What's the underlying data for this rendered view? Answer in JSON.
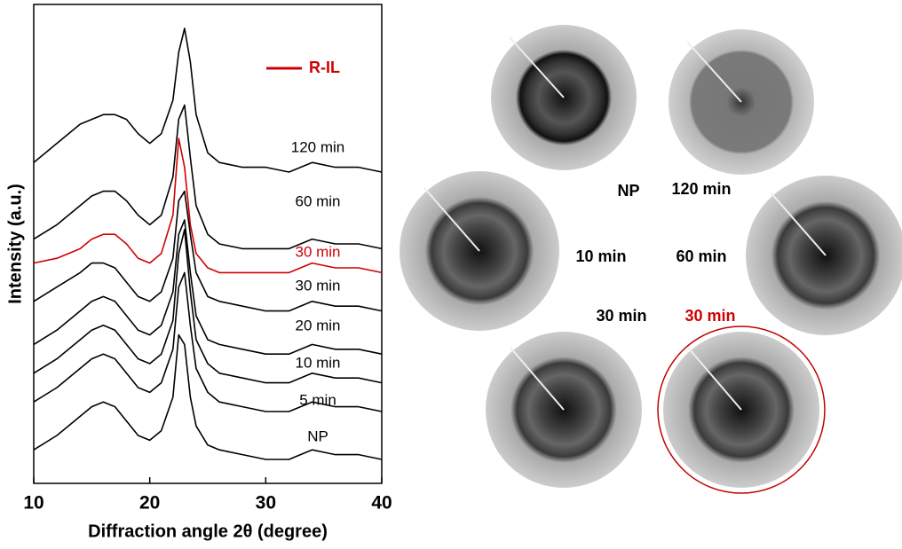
{
  "chart_data": {
    "type": "line",
    "x_label": "Diffraction angle 2θ (degree)",
    "y_label": "Intensity (a.u.)",
    "xlim": [
      10,
      40
    ],
    "xticks": [
      10,
      20,
      30,
      40
    ],
    "ylim": [
      0,
      100
    ],
    "legend": {
      "label": "R-IL",
      "color": "#d00000"
    },
    "x": [
      10,
      12,
      14,
      15,
      16,
      17,
      18,
      19,
      20,
      21,
      22,
      22.5,
      23,
      23.5,
      24,
      25,
      26,
      28,
      30,
      32,
      34,
      36,
      38,
      40
    ],
    "series": [
      {
        "name": "120 min",
        "color": "#000000",
        "values": [
          67,
          71,
          75,
          76,
          77,
          77,
          76,
          73,
          71,
          73,
          80,
          90,
          95,
          88,
          77,
          69,
          67,
          66,
          66,
          65,
          67,
          66,
          66,
          65
        ]
      },
      {
        "name": "60 min",
        "color": "#000000",
        "values": [
          51,
          54,
          58,
          60,
          61,
          61,
          59,
          56,
          54,
          56,
          64,
          76,
          79,
          68,
          58,
          52,
          50,
          49,
          49,
          49,
          51,
          50,
          50,
          49
        ]
      },
      {
        "name": "30 min",
        "color": "#d00000",
        "values": [
          46,
          47,
          49,
          51,
          52,
          52,
          50,
          47,
          46,
          48,
          56,
          72,
          66,
          54,
          48,
          45,
          44,
          44,
          44,
          44,
          46,
          45,
          45,
          44
        ]
      },
      {
        "name": "30 min",
        "color": "#000000",
        "values": [
          38,
          41,
          44,
          46,
          46,
          45,
          42,
          39,
          38,
          40,
          47,
          59,
          61,
          52,
          44,
          39,
          38,
          37,
          36,
          36,
          38,
          37,
          37,
          36
        ]
      },
      {
        "name": "20 min",
        "color": "#000000",
        "values": [
          29,
          32,
          36,
          38,
          39,
          38,
          35,
          32,
          31,
          33,
          40,
          52,
          55,
          44,
          35,
          30,
          29,
          28,
          27,
          27,
          29,
          28,
          28,
          27
        ]
      },
      {
        "name": "10 min",
        "color": "#000000",
        "values": [
          23,
          26,
          30,
          32,
          33,
          32,
          29,
          26,
          25,
          27,
          34,
          48,
          53,
          40,
          30,
          25,
          23,
          22,
          21,
          21,
          23,
          22,
          22,
          21
        ]
      },
      {
        "name": "5 min",
        "color": "#000000",
        "values": [
          17,
          20,
          24,
          26,
          27,
          26,
          23,
          20,
          19,
          21,
          28,
          41,
          44,
          33,
          24,
          19,
          17,
          16,
          15,
          15,
          17,
          16,
          16,
          15
        ]
      },
      {
        "name": "NP",
        "color": "#000000",
        "values": [
          7,
          10,
          14,
          16,
          17,
          16,
          13,
          10,
          9,
          11,
          18,
          31,
          29,
          18,
          12,
          8,
          7,
          6,
          5,
          5,
          7,
          6,
          6,
          5
        ]
      }
    ]
  },
  "patterns": [
    {
      "label": "NP"
    },
    {
      "label": "120 min"
    },
    {
      "label": "10 min"
    },
    {
      "label": "60 min"
    },
    {
      "label": "30 min"
    },
    {
      "label": "30 min",
      "color": "#d00000"
    }
  ]
}
